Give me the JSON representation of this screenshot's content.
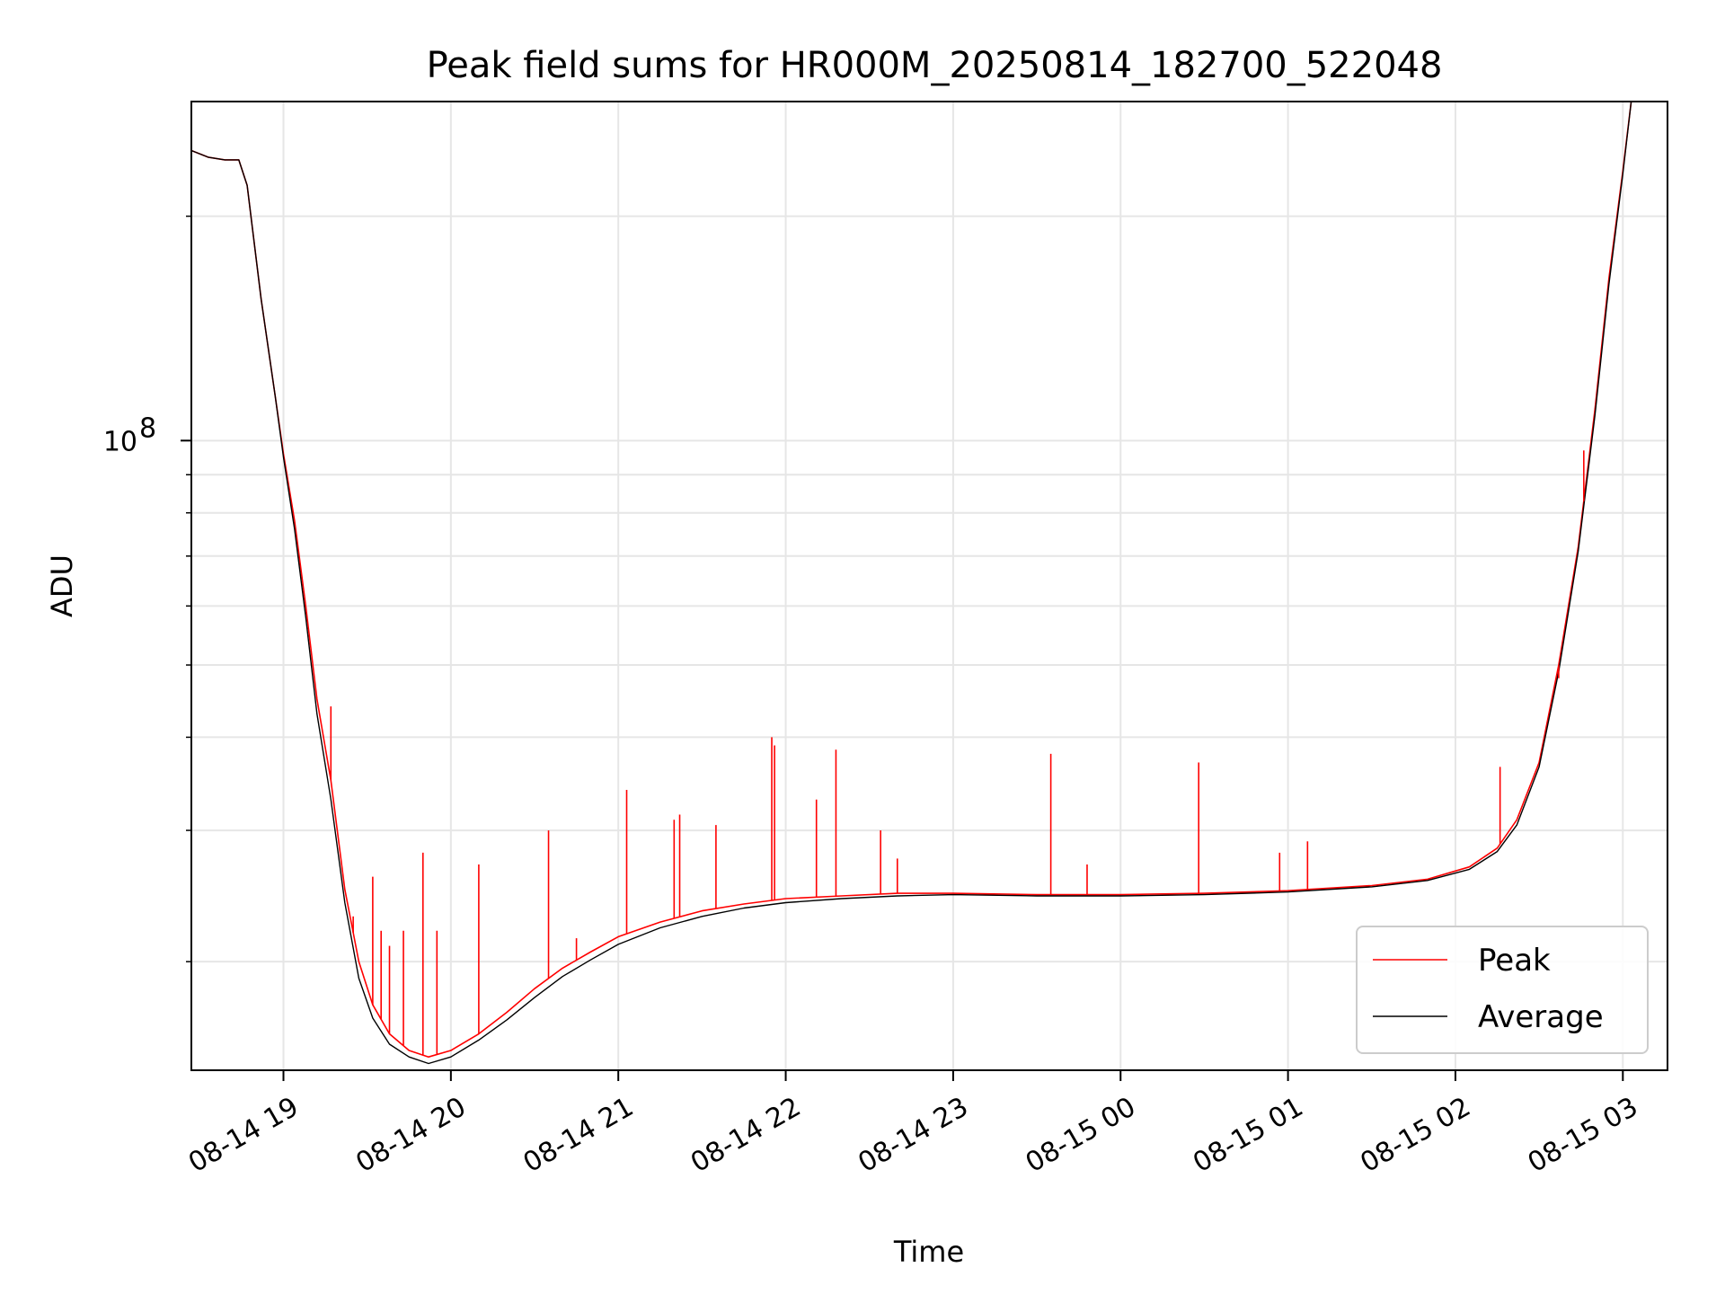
{
  "chart_data": {
    "type": "line",
    "title": "Peak field sums for HR000M_20250814_182700_522048",
    "xlabel": "Time",
    "ylabel": "ADU",
    "yscale": "log",
    "grid": true,
    "legend_position": "lower-right",
    "xlim": [
      "2025-08-14 18:27",
      "2025-08-15 03:16"
    ],
    "ylim": [
      14300000,
      285000000
    ],
    "x_ticks": [
      {
        "value": "2025-08-14 19:00",
        "label": "08-14 19"
      },
      {
        "value": "2025-08-14 20:00",
        "label": "08-14 20"
      },
      {
        "value": "2025-08-14 21:00",
        "label": "08-14 21"
      },
      {
        "value": "2025-08-14 22:00",
        "label": "08-14 22"
      },
      {
        "value": "2025-08-14 23:00",
        "label": "08-14 23"
      },
      {
        "value": "2025-08-15 00:00",
        "label": "08-15 00"
      },
      {
        "value": "2025-08-15 01:00",
        "label": "08-15 01"
      },
      {
        "value": "2025-08-15 02:00",
        "label": "08-15 02"
      },
      {
        "value": "2025-08-15 03:00",
        "label": "08-15 03"
      }
    ],
    "y_major_ticks": [
      {
        "value": 100000000,
        "base": "10",
        "exp": "8"
      }
    ],
    "y_minor_ticks": [
      20000000,
      30000000,
      40000000,
      50000000,
      60000000,
      70000000,
      80000000,
      90000000,
      200000000
    ],
    "series": [
      {
        "name": "Peak",
        "color": "#ff0000",
        "x": [
          "2025-08-14 18:27",
          "2025-08-14 18:33",
          "2025-08-14 18:39",
          "2025-08-14 18:44",
          "2025-08-14 18:47",
          "2025-08-14 18:52",
          "2025-08-14 18:57",
          "2025-08-14 19:00",
          "2025-08-14 19:04",
          "2025-08-14 19:08",
          "2025-08-14 19:12",
          "2025-08-14 19:17",
          "2025-08-14 19:22",
          "2025-08-14 19:27",
          "2025-08-14 19:32",
          "2025-08-14 19:38",
          "2025-08-14 19:45",
          "2025-08-14 19:52",
          "2025-08-14 20:00",
          "2025-08-14 20:10",
          "2025-08-14 20:20",
          "2025-08-14 20:30",
          "2025-08-14 20:40",
          "2025-08-14 20:50",
          "2025-08-14 21:00",
          "2025-08-14 21:15",
          "2025-08-14 21:30",
          "2025-08-14 21:45",
          "2025-08-14 22:00",
          "2025-08-14 22:20",
          "2025-08-14 22:40",
          "2025-08-14 23:00",
          "2025-08-14 23:30",
          "2025-08-15 00:00",
          "2025-08-15 00:30",
          "2025-08-15 01:00",
          "2025-08-15 01:30",
          "2025-08-15 01:50",
          "2025-08-15 02:05",
          "2025-08-15 02:15",
          "2025-08-15 02:22",
          "2025-08-15 02:30",
          "2025-08-15 02:37",
          "2025-08-15 02:44",
          "2025-08-15 02:50",
          "2025-08-15 02:55",
          "2025-08-15 03:00",
          "2025-08-15 03:03"
        ],
        "y": [
          245000000,
          240000000,
          238000000,
          238000000,
          220000000,
          155000000,
          115000000,
          96000000,
          78000000,
          60000000,
          45000000,
          35000000,
          25000000,
          20000000,
          17500000,
          16000000,
          15200000,
          14900000,
          15200000,
          16000000,
          17100000,
          18400000,
          19600000,
          20600000,
          21600000,
          22600000,
          23400000,
          23900000,
          24300000,
          24500000,
          24700000,
          24700000,
          24600000,
          24600000,
          24700000,
          24900000,
          25300000,
          25800000,
          26800000,
          28400000,
          31000000,
          37000000,
          50000000,
          72000000,
          110000000,
          165000000,
          230000000,
          285000000
        ]
      },
      {
        "name": "Average",
        "color": "#000000",
        "x": [
          "2025-08-14 18:27",
          "2025-08-14 18:33",
          "2025-08-14 18:39",
          "2025-08-14 18:44",
          "2025-08-14 18:47",
          "2025-08-14 18:52",
          "2025-08-14 18:57",
          "2025-08-14 19:00",
          "2025-08-14 19:04",
          "2025-08-14 19:08",
          "2025-08-14 19:12",
          "2025-08-14 19:17",
          "2025-08-14 19:22",
          "2025-08-14 19:27",
          "2025-08-14 19:32",
          "2025-08-14 19:38",
          "2025-08-14 19:45",
          "2025-08-14 19:52",
          "2025-08-14 20:00",
          "2025-08-14 20:10",
          "2025-08-14 20:20",
          "2025-08-14 20:30",
          "2025-08-14 20:40",
          "2025-08-14 20:50",
          "2025-08-14 21:00",
          "2025-08-14 21:15",
          "2025-08-14 21:30",
          "2025-08-14 21:45",
          "2025-08-14 22:00",
          "2025-08-14 22:20",
          "2025-08-14 22:40",
          "2025-08-14 23:00",
          "2025-08-14 23:30",
          "2025-08-15 00:00",
          "2025-08-15 00:30",
          "2025-08-15 01:00",
          "2025-08-15 01:30",
          "2025-08-15 01:50",
          "2025-08-15 02:05",
          "2025-08-15 02:15",
          "2025-08-15 02:22",
          "2025-08-15 02:30",
          "2025-08-15 02:37",
          "2025-08-15 02:44",
          "2025-08-15 02:50",
          "2025-08-15 02:55",
          "2025-08-15 03:00",
          "2025-08-15 03:03"
        ],
        "y": [
          245000000,
          240000000,
          238000000,
          238000000,
          220000000,
          155000000,
          115000000,
          95000000,
          76000000,
          58000000,
          43000000,
          33000000,
          24000000,
          19000000,
          16800000,
          15500000,
          14900000,
          14600000,
          14900000,
          15700000,
          16700000,
          17900000,
          19100000,
          20100000,
          21100000,
          22200000,
          23000000,
          23600000,
          24000000,
          24300000,
          24500000,
          24600000,
          24500000,
          24500000,
          24600000,
          24800000,
          25200000,
          25700000,
          26600000,
          28100000,
          30500000,
          36500000,
          49000000,
          71000000,
          108000000,
          162000000,
          228000000,
          285000000
        ]
      }
    ],
    "spikes": [
      {
        "x": "2025-08-14 19:17",
        "y": 44000000
      },
      {
        "x": "2025-08-14 19:25",
        "y": 23000000
      },
      {
        "x": "2025-08-14 19:32",
        "y": 26000000
      },
      {
        "x": "2025-08-14 19:35",
        "y": 22000000
      },
      {
        "x": "2025-08-14 19:38",
        "y": 21000000
      },
      {
        "x": "2025-08-14 19:43",
        "y": 22000000
      },
      {
        "x": "2025-08-14 19:50",
        "y": 28000000
      },
      {
        "x": "2025-08-14 19:55",
        "y": 22000000
      },
      {
        "x": "2025-08-14 20:10",
        "y": 27000000
      },
      {
        "x": "2025-08-14 20:35",
        "y": 30000000
      },
      {
        "x": "2025-08-14 20:45",
        "y": 21500000
      },
      {
        "x": "2025-08-14 21:03",
        "y": 34000000
      },
      {
        "x": "2025-08-14 21:20",
        "y": 31000000
      },
      {
        "x": "2025-08-14 21:22",
        "y": 31500000
      },
      {
        "x": "2025-08-14 21:35",
        "y": 30500000
      },
      {
        "x": "2025-08-14 21:55",
        "y": 40000000
      },
      {
        "x": "2025-08-14 21:56",
        "y": 39000000
      },
      {
        "x": "2025-08-14 22:11",
        "y": 33000000
      },
      {
        "x": "2025-08-14 22:18",
        "y": 38500000
      },
      {
        "x": "2025-08-14 22:34",
        "y": 30000000
      },
      {
        "x": "2025-08-14 22:40",
        "y": 27500000
      },
      {
        "x": "2025-08-14 23:35",
        "y": 38000000
      },
      {
        "x": "2025-08-14 23:48",
        "y": 27000000
      },
      {
        "x": "2025-08-15 00:28",
        "y": 37000000
      },
      {
        "x": "2025-08-15 00:57",
        "y": 28000000
      },
      {
        "x": "2025-08-15 01:07",
        "y": 29000000
      },
      {
        "x": "2025-08-15 02:16",
        "y": 36500000
      },
      {
        "x": "2025-08-15 02:37",
        "y": 48000000
      },
      {
        "x": "2025-08-15 02:46",
        "y": 97000000
      }
    ]
  }
}
